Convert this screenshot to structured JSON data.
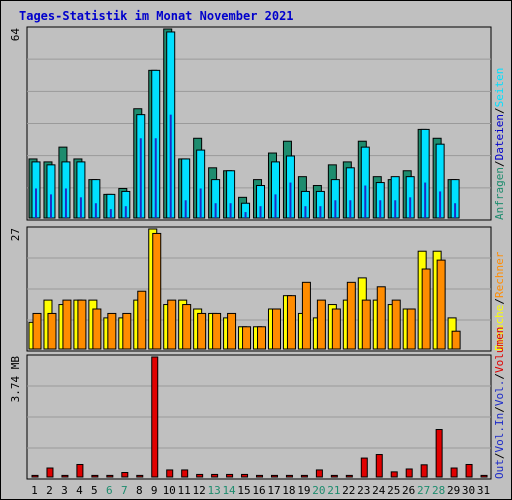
{
  "title": "Tages-Statistik im Monat November 2021",
  "colors": {
    "title": "#0000cc",
    "background": "#c0c0c0",
    "panel": "#c0c0c0",
    "grid": "#9a9a9a",
    "anfragen": "#1e8c6e",
    "dateien": "#00e0ff",
    "seiten": "#1e2cc8",
    "besuche": "#ffff00",
    "rechner": "#ff8c00",
    "vol_out": "#1e2cc8",
    "vol_in": "#1e2cc8",
    "volumen": "#e00000",
    "weekday": "#000000",
    "weekend": "#1e8c6e"
  },
  "legend": {
    "panel1": [
      {
        "label": "Anfragen",
        "color": "#1e8c6e"
      },
      {
        "label": "/",
        "color": "#000000"
      },
      {
        "label": "Dateien",
        "color": "#0000cc"
      },
      {
        "label": "/",
        "color": "#000000"
      },
      {
        "label": "Seiten",
        "color": "#00e0ff"
      }
    ],
    "panel2": [
      {
        "label": "Besuche",
        "color": "#ffff00"
      },
      {
        "label": "/",
        "color": "#000000"
      },
      {
        "label": "Rechner",
        "color": "#ff8c00"
      }
    ],
    "panel3": [
      {
        "label": "Out",
        "color": "#1e2cc8"
      },
      {
        "label": "/",
        "color": "#000000"
      },
      {
        "label": "Vol.",
        "color": "#1e2cc8"
      },
      {
        "label": "In",
        "color": "#1e2cc8"
      },
      {
        "label": "/",
        "color": "#000000"
      },
      {
        "label": "Vol.",
        "color": "#1e2cc8"
      },
      {
        "label": "/",
        "color": "#000000"
      },
      {
        "label": "Volumen",
        "color": "#e00000"
      }
    ]
  },
  "chart_data": [
    {
      "type": "bar",
      "ylabel": "64",
      "ylim": [
        0,
        64
      ],
      "categories": [
        "1",
        "2",
        "3",
        "4",
        "5",
        "6",
        "7",
        "8",
        "9",
        "10",
        "11",
        "12",
        "13",
        "14",
        "15",
        "16",
        "17",
        "18",
        "19",
        "20",
        "21",
        "22",
        "23",
        "24",
        "25",
        "26",
        "27",
        "28",
        "29",
        "30",
        "31"
      ],
      "series": [
        {
          "name": "Anfragen",
          "values": [
            20,
            19,
            24,
            20,
            13,
            8,
            10,
            37,
            50,
            64,
            20,
            27,
            17,
            16,
            7,
            13,
            22,
            26,
            14,
            11,
            18,
            19,
            26,
            14,
            13,
            16,
            30,
            27,
            13,
            0,
            0
          ]
        },
        {
          "name": "Dateien",
          "values": [
            19,
            18,
            19,
            19,
            13,
            8,
            9,
            35,
            50,
            63,
            20,
            23,
            13,
            16,
            5,
            11,
            19,
            21,
            9,
            9,
            13,
            17,
            24,
            12,
            14,
            14,
            30,
            25,
            13,
            0,
            0
          ]
        },
        {
          "name": "Seiten",
          "values": [
            10,
            8,
            10,
            7,
            5,
            3,
            4,
            27,
            27,
            35,
            6,
            10,
            5,
            5,
            2,
            4,
            8,
            12,
            4,
            4,
            6,
            6,
            11,
            6,
            6,
            7,
            12,
            9,
            5,
            0,
            0
          ]
        }
      ]
    },
    {
      "type": "bar",
      "ylabel": "27",
      "ylim": [
        0,
        27
      ],
      "categories": [
        "1",
        "2",
        "3",
        "4",
        "5",
        "6",
        "7",
        "8",
        "9",
        "10",
        "11",
        "12",
        "13",
        "14",
        "15",
        "16",
        "17",
        "18",
        "19",
        "20",
        "21",
        "22",
        "23",
        "24",
        "25",
        "26",
        "27",
        "28",
        "29",
        "30",
        "31"
      ],
      "series": [
        {
          "name": "Besuche",
          "values": [
            6,
            11,
            10,
            11,
            11,
            7,
            7,
            11,
            27,
            10,
            11,
            9,
            8,
            7,
            5,
            5,
            9,
            12,
            8,
            7,
            10,
            11,
            16,
            11,
            10,
            9,
            22,
            22,
            7,
            0,
            0
          ]
        },
        {
          "name": "Rechner",
          "values": [
            8,
            8,
            11,
            11,
            9,
            8,
            8,
            13,
            26,
            11,
            10,
            8,
            8,
            8,
            5,
            5,
            9,
            12,
            15,
            11,
            9,
            15,
            11,
            14,
            11,
            9,
            18,
            20,
            4,
            0,
            0
          ]
        }
      ]
    },
    {
      "type": "bar",
      "ylabel": "3.74 MB",
      "ylim": [
        0,
        3.74
      ],
      "categories": [
        "1",
        "2",
        "3",
        "4",
        "5",
        "6",
        "7",
        "8",
        "9",
        "10",
        "11",
        "12",
        "13",
        "14",
        "15",
        "16",
        "17",
        "18",
        "19",
        "20",
        "21",
        "22",
        "23",
        "24",
        "25",
        "26",
        "27",
        "28",
        "29",
        "30",
        "31"
      ],
      "weekend_days": [
        "6",
        "7",
        "13",
        "14",
        "20",
        "21",
        "27",
        "28"
      ],
      "series": [
        {
          "name": "Volumen",
          "values": [
            0.05,
            0.28,
            0.05,
            0.39,
            0.05,
            0.05,
            0.14,
            0.05,
            3.74,
            0.22,
            0.22,
            0.08,
            0.08,
            0.08,
            0.08,
            0.05,
            0.05,
            0.05,
            0.05,
            0.22,
            0.05,
            0.05,
            0.59,
            0.7,
            0.16,
            0.25,
            0.38,
            1.48,
            0.28,
            0.39,
            0.05
          ]
        }
      ]
    }
  ]
}
